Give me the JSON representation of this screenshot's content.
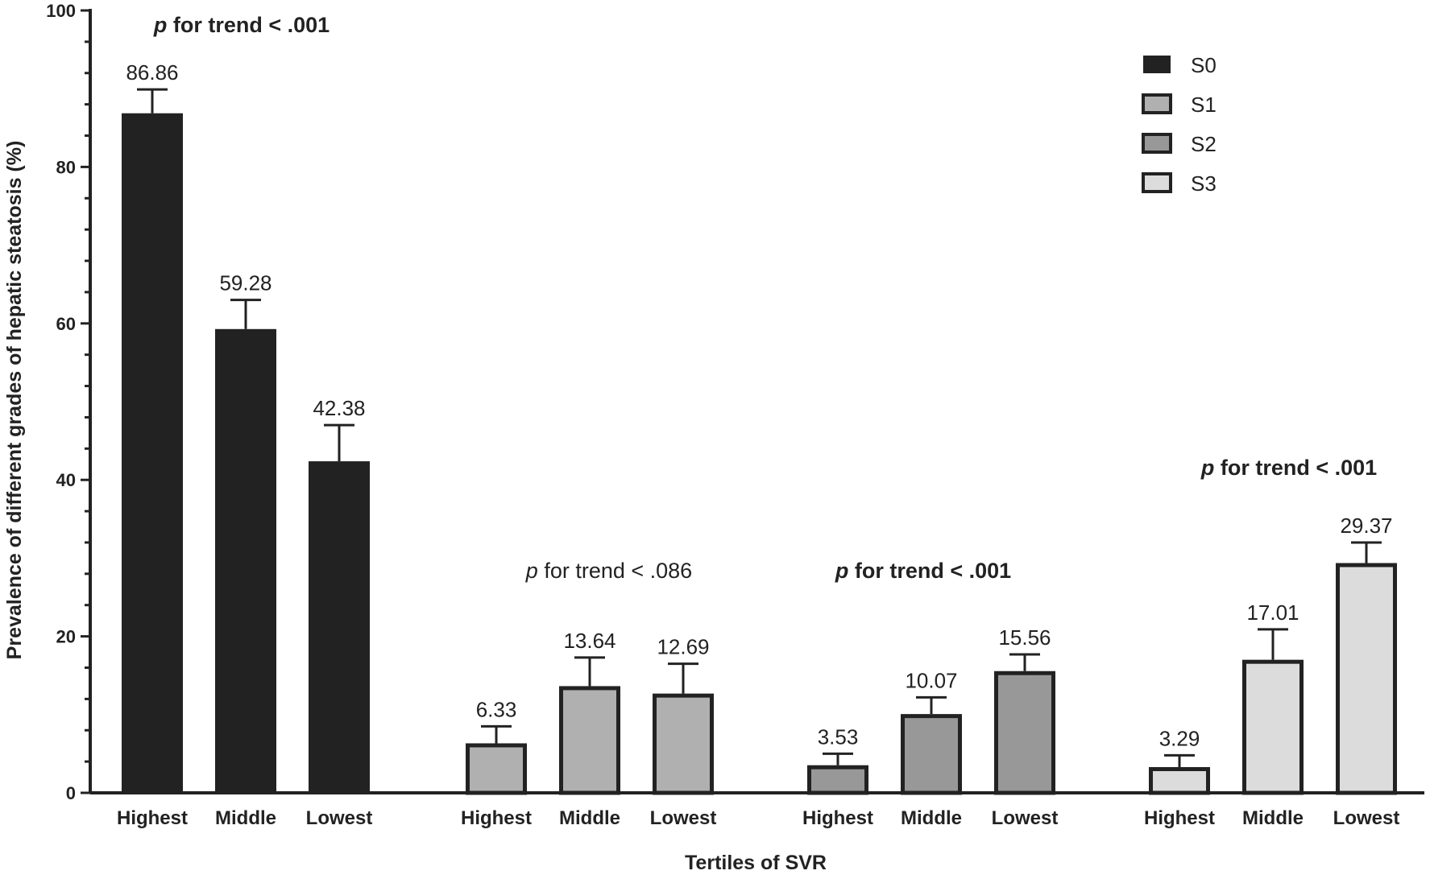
{
  "chart_data": {
    "type": "bar",
    "xlabel": "Tertiles of SVR",
    "ylabel": "Prevalence of different grades of hepatic steatosis (%)",
    "ylim": [
      0,
      100
    ],
    "yticks": [
      "0",
      "20",
      "40",
      "60",
      "80",
      "100"
    ],
    "grid": false,
    "legend_position": "top-right",
    "series": [
      {
        "name": "S0",
        "color": "#222222",
        "categories": [
          "Highest",
          "Middle",
          "Lowest"
        ],
        "values": [
          86.86,
          59.28,
          42.38
        ],
        "value_labels": [
          "86.86",
          "59.28",
          "42.38"
        ],
        "error_upper": [
          89.9,
          63.0,
          47.0
        ],
        "annotation": {
          "italic": "p",
          "text": " for trend < .001",
          "bold": true
        }
      },
      {
        "name": "S1",
        "color": "#b0b0b0",
        "categories": [
          "Highest",
          "Middle",
          "Lowest"
        ],
        "values": [
          6.33,
          13.64,
          12.69
        ],
        "value_labels": [
          "6.33",
          "13.64",
          "12.69"
        ],
        "error_upper": [
          8.5,
          17.3,
          16.5
        ],
        "annotation": {
          "italic": "p",
          "text": " for trend < .086",
          "bold": false
        }
      },
      {
        "name": "S2",
        "color": "#989898",
        "categories": [
          "Highest",
          "Middle",
          "Lowest"
        ],
        "values": [
          3.53,
          10.07,
          15.56
        ],
        "value_labels": [
          "3.53",
          "10.07",
          "15.56"
        ],
        "error_upper": [
          5.0,
          12.2,
          17.7
        ],
        "annotation": {
          "italic": "p",
          "text": " for trend < .001",
          "bold": true
        }
      },
      {
        "name": "S3",
        "color": "#dcdcdc",
        "categories": [
          "Highest",
          "Middle",
          "Lowest"
        ],
        "values": [
          3.29,
          17.01,
          29.37
        ],
        "value_labels": [
          "3.29",
          "17.01",
          "29.37"
        ],
        "error_upper": [
          4.8,
          20.9,
          32.0
        ],
        "annotation": {
          "italic": "p",
          "text": " for trend < .001",
          "bold": true
        }
      }
    ]
  }
}
